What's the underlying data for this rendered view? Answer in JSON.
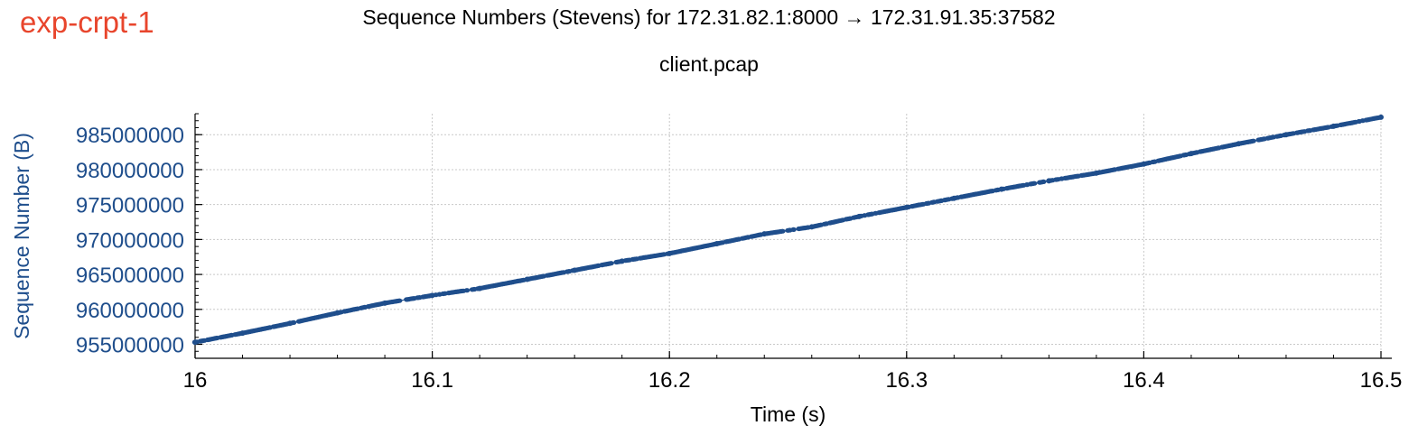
{
  "header": {
    "experiment_label": "exp-crpt-1",
    "title": "Sequence Numbers (Stevens) for 172.31.82.1:8000 → 172.31.91.35:37582",
    "subtitle": "client.pcap"
  },
  "colors": {
    "series": "#1f4e8c",
    "experiment_label": "#e8452c",
    "grid": "#c8c8c8"
  },
  "chart_data": {
    "type": "scatter",
    "title": "Sequence Numbers (Stevens) for 172.31.82.1:8000 → 172.31.91.35:37582",
    "subtitle": "client.pcap",
    "xlabel": "Time (s)",
    "ylabel": "Sequence Number (B)",
    "xlim": [
      16.0,
      16.5
    ],
    "ylim": [
      953000000,
      988000000
    ],
    "x_ticks": [
      16,
      16.1,
      16.2,
      16.3,
      16.4,
      16.5
    ],
    "x_tick_labels": [
      "16",
      "16.1",
      "16.2",
      "16.3",
      "16.4",
      "16.5"
    ],
    "y_ticks": [
      955000000,
      960000000,
      965000000,
      970000000,
      975000000,
      980000000,
      985000000
    ],
    "y_tick_labels": [
      "955000000",
      "960000000",
      "965000000",
      "970000000",
      "975000000",
      "980000000",
      "985000000"
    ],
    "grid": true,
    "series": [
      {
        "x": [
          16.0,
          16.02,
          16.04,
          16.06,
          16.08,
          16.1,
          16.12,
          16.14,
          16.16,
          16.18,
          16.2,
          16.22,
          16.24,
          16.26,
          16.28,
          16.3,
          16.32,
          16.34,
          16.36,
          16.38,
          16.4,
          16.42,
          16.44,
          16.46,
          16.48,
          16.5
        ],
        "y": [
          955300000,
          956600000,
          958000000,
          959500000,
          960900000,
          962000000,
          963000000,
          964300000,
          965600000,
          966900000,
          968000000,
          969400000,
          970800000,
          971800000,
          973300000,
          974600000,
          975900000,
          977200000,
          978400000,
          979500000,
          980800000,
          982300000,
          983700000,
          985000000,
          986200000,
          987500000
        ]
      }
    ]
  }
}
